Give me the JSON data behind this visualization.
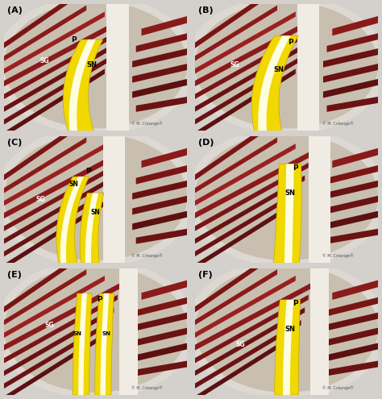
{
  "figure_width": 4.74,
  "figure_height": 4.95,
  "dpi": 100,
  "background_color": "#d4d0cc",
  "panel_bg_outer": "#ccc8c4",
  "panel_bg_inner": "#c8bfb8",
  "label_fontsize": 8,
  "label_color": "black",
  "label_fontweight": "bold",
  "watermark": "© M. Créange®",
  "watermark_fontsize": 3.5,
  "watermark_color": "#555555",
  "panels": [
    "A",
    "B",
    "C",
    "D",
    "E",
    "F"
  ],
  "panel_titles": [
    "(A)",
    "(B)",
    "(C)",
    "(D)",
    "(E)",
    "(F)"
  ],
  "muscle_colors": [
    "#8b1a1a",
    "#7a1515",
    "#6b1212",
    "#5c1010",
    "#9b2020",
    "#a02828"
  ],
  "nerve_yellow": "#f0d800",
  "nerve_yellow2": "#e8c800",
  "nerve_highlight": "#fffff0",
  "fascia_white": "#f0ece8",
  "hspace": 0.04,
  "wspace": 0.04
}
